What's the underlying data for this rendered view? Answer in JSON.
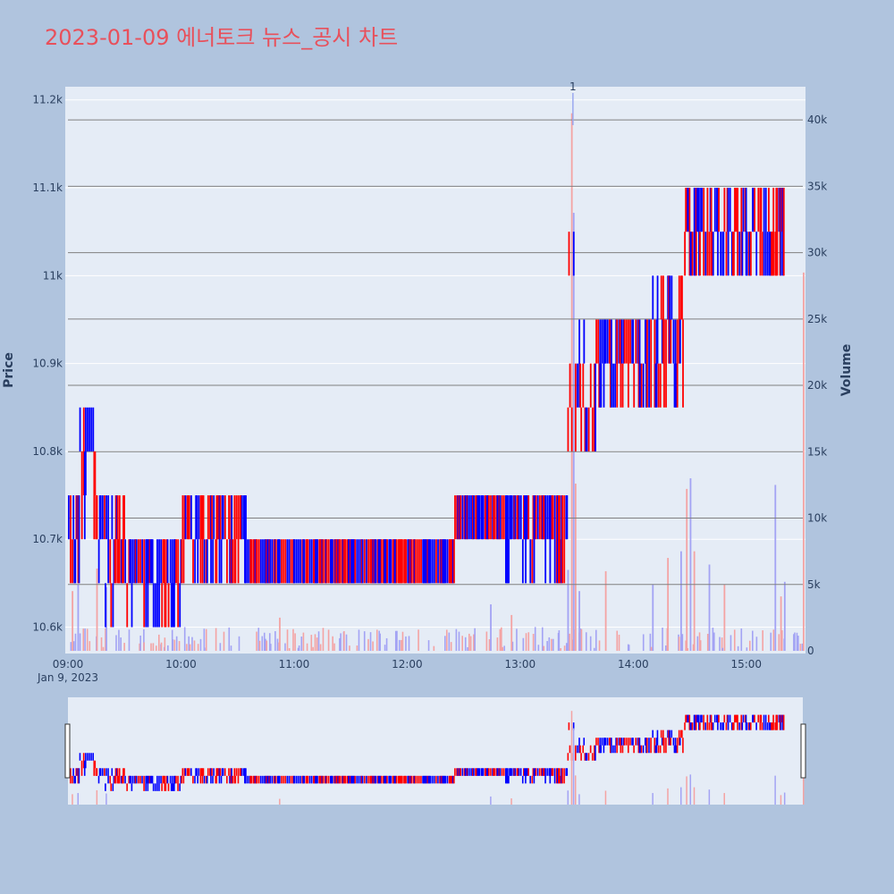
{
  "title": "2023-01-09 에너토크 뉴스_공시 차트",
  "colors": {
    "page_bg": "#b0c4de",
    "plot_bg": "#e5ecf6",
    "up": "#ff0000",
    "down": "#0000ff",
    "volume_up": "#f4a3a3",
    "volume_down": "#a3a3f4",
    "grid": "#ffffff",
    "volume_grid": "#808080",
    "title": "#e8505b"
  },
  "chart_data": {
    "type": "candlestick+bar",
    "title": "2023-01-09 에너토크 뉴스_공시 차트",
    "date_label": "Jan 9, 2023",
    "x_range": [
      "09:00",
      "15:30"
    ],
    "x_ticks": [
      "09:00",
      "10:00",
      "11:00",
      "12:00",
      "13:00",
      "14:00",
      "15:00"
    ],
    "price_axis": {
      "label": "Price",
      "range": [
        10570,
        11215
      ],
      "ticks": [
        10600,
        10700,
        10800,
        10900,
        11000,
        11100,
        11200
      ],
      "tick_labels": [
        "10.6k",
        "10.7k",
        "10.8k",
        "10.9k",
        "11k",
        "11.1k",
        "11.2k"
      ]
    },
    "volume_axis": {
      "label": "Volume",
      "range": [
        0,
        42500
      ],
      "ticks": [
        0,
        5000,
        10000,
        15000,
        20000,
        25000,
        30000,
        35000,
        40000
      ],
      "tick_labels": [
        "0",
        "5k",
        "10k",
        "15k",
        "20k",
        "25k",
        "30k",
        "35k",
        "40k"
      ]
    },
    "annotations": [
      {
        "time": "13:28",
        "text": "1"
      }
    ],
    "price_segments": [
      {
        "start": "09:00",
        "end": "09:06",
        "low": 10650,
        "high": 10750
      },
      {
        "start": "09:06",
        "end": "09:15",
        "low": 10700,
        "high": 10850
      },
      {
        "start": "09:15",
        "end": "09:30",
        "low": 10600,
        "high": 10750
      },
      {
        "start": "09:30",
        "end": "10:00",
        "low": 10600,
        "high": 10700
      },
      {
        "start": "10:00",
        "end": "10:35",
        "low": 10650,
        "high": 10750
      },
      {
        "start": "10:35",
        "end": "12:25",
        "low": 10650,
        "high": 10700
      },
      {
        "start": "12:25",
        "end": "12:50",
        "low": 10700,
        "high": 10750
      },
      {
        "start": "12:50",
        "end": "13:25",
        "low": 10650,
        "high": 10750
      },
      {
        "start": "13:25",
        "end": "13:30",
        "low": 10700,
        "high": 11050
      },
      {
        "start": "13:30",
        "end": "13:40",
        "low": 10800,
        "high": 10950
      },
      {
        "start": "13:40",
        "end": "14:10",
        "low": 10850,
        "high": 10950
      },
      {
        "start": "14:10",
        "end": "14:27",
        "low": 10850,
        "high": 11000
      },
      {
        "start": "14:27",
        "end": "14:35",
        "low": 11000,
        "high": 11100
      },
      {
        "start": "14:35",
        "end": "15:20",
        "low": 11000,
        "high": 11100
      }
    ],
    "volume_spikes": [
      {
        "time": "09:02",
        "value": 4500
      },
      {
        "time": "09:05",
        "value": 5000
      },
      {
        "time": "09:15",
        "value": 6200
      },
      {
        "time": "09:20",
        "value": 4800
      },
      {
        "time": "10:52",
        "value": 2500
      },
      {
        "time": "12:44",
        "value": 3500
      },
      {
        "time": "12:55",
        "value": 2700
      },
      {
        "time": "13:25",
        "value": 6100
      },
      {
        "time": "13:27",
        "value": 40500
      },
      {
        "time": "13:28",
        "value": 33000
      },
      {
        "time": "13:29",
        "value": 12600
      },
      {
        "time": "13:31",
        "value": 4500
      },
      {
        "time": "13:45",
        "value": 6000
      },
      {
        "time": "14:10",
        "value": 5000
      },
      {
        "time": "14:18",
        "value": 7000
      },
      {
        "time": "14:25",
        "value": 7500
      },
      {
        "time": "14:28",
        "value": 12200
      },
      {
        "time": "14:30",
        "value": 13000
      },
      {
        "time": "14:32",
        "value": 7500
      },
      {
        "time": "14:40",
        "value": 6500
      },
      {
        "time": "14:48",
        "value": 5000
      },
      {
        "time": "15:15",
        "value": 12500
      },
      {
        "time": "15:18",
        "value": 4100
      },
      {
        "time": "15:20",
        "value": 5200
      },
      {
        "time": "15:30",
        "value": 28500
      }
    ]
  }
}
